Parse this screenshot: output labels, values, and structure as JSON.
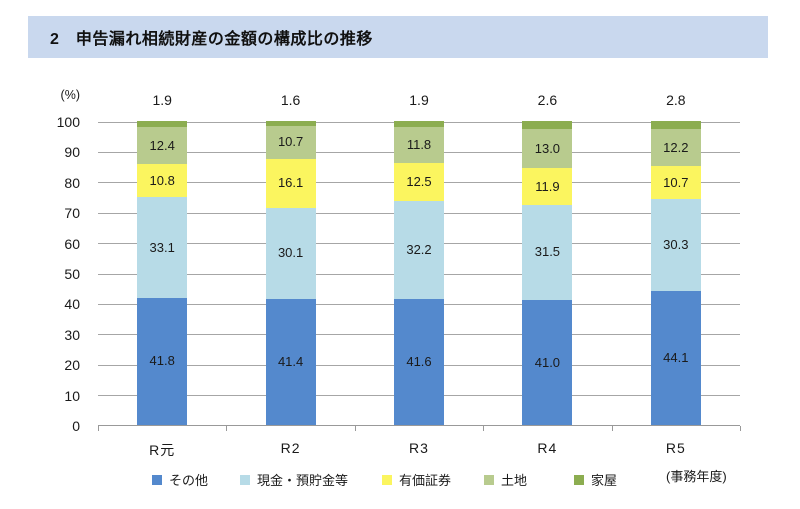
{
  "header": {
    "title": "2　申告漏れ相続財産の金額の構成比の推移",
    "background": "#c9d8ee"
  },
  "chart_data": {
    "type": "bar",
    "stacked": true,
    "title": "申告漏れ相続財産の金額の構成比の推移",
    "unit_label": "(%)",
    "axis_note": "(事務年度)",
    "categories": [
      "R元",
      "R2",
      "R3",
      "R4",
      "R5"
    ],
    "series": [
      {
        "name": "その他",
        "color": "#5489cd",
        "values": [
          41.8,
          41.4,
          41.6,
          41.0,
          44.1
        ],
        "label_position": "inside"
      },
      {
        "name": "現金・預貯金等",
        "color": "#b7dbe7",
        "values": [
          33.1,
          30.1,
          32.2,
          31.5,
          30.3
        ],
        "label_position": "inside"
      },
      {
        "name": "有価証券",
        "color": "#fbf55f",
        "values": [
          10.8,
          16.1,
          12.5,
          11.9,
          10.7
        ],
        "label_position": "inside"
      },
      {
        "name": "土地",
        "color": "#b8cb8e",
        "values": [
          12.4,
          10.7,
          11.8,
          13.0,
          12.2
        ],
        "label_position": "inside"
      },
      {
        "name": "家屋",
        "color": "#8cad50",
        "values": [
          1.9,
          1.6,
          1.9,
          2.6,
          2.8
        ],
        "label_position": "above"
      }
    ],
    "ylim": [
      0,
      100
    ],
    "ytick_step": 10,
    "grid": true,
    "grid_color": "#a6a6a6",
    "axis_color": "#999999",
    "legend_position": "bottom",
    "legend_x_offsets": [
      152,
      240,
      382,
      484,
      574
    ]
  }
}
